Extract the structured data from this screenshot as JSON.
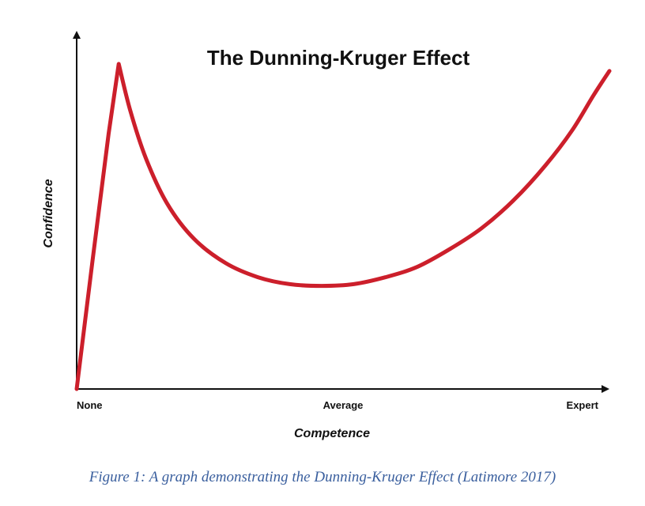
{
  "chart_data": {
    "type": "line",
    "title": "The Dunning-Kruger Effect",
    "xlabel": "Competence",
    "ylabel": "Confidence",
    "x_tick_labels": [
      {
        "label": "None",
        "x": 0
      },
      {
        "label": "Average",
        "x": 50
      },
      {
        "label": "Expert",
        "x": 100
      }
    ],
    "xlim": [
      0,
      100
    ],
    "ylim": [
      0,
      100
    ],
    "grid": false,
    "y_ticks_shown": false,
    "line_color": "#cc1f2b",
    "series": [
      {
        "name": "",
        "x": [
          0,
          3,
          6,
          7.9,
          10,
          13,
          17,
          22,
          28,
          34,
          40,
          46,
          52,
          58,
          64,
          70,
          76,
          82,
          88,
          93,
          97,
          100
        ],
        "y": [
          0,
          37,
          73,
          93,
          80,
          66,
          53,
          43,
          36,
          32,
          30,
          29.5,
          30,
          32,
          35,
          40,
          46,
          54,
          64,
          74,
          84,
          91
        ]
      }
    ]
  },
  "caption": "Figure 1: A graph demonstrating the Dunning-Kruger Effect (Latimore 2017)"
}
